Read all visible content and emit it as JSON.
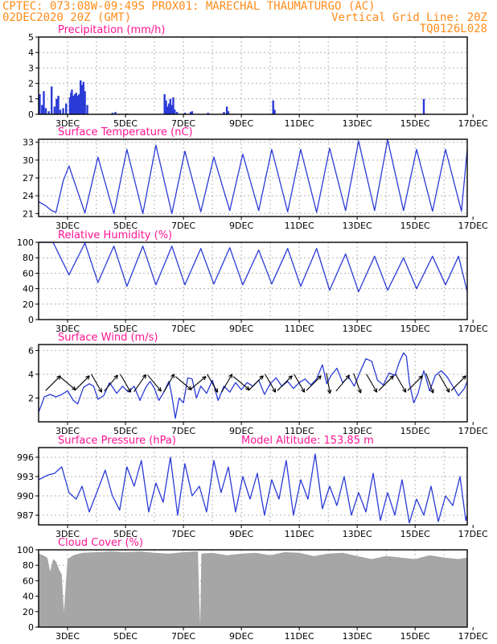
{
  "header": {
    "line1_left": "CPTEC:  073:08W-09:49S  PROX01: MARECHAL THAUMATURGO (AC)",
    "line2_left": "02DEC2020 20Z (GMT)",
    "line2_right": "Vertical Grid Line: 20Z",
    "line3_right": "TQ0126L028"
  },
  "colors": {
    "header": "#ff8c1a",
    "title": "#ff1493",
    "series": "#2b3bd6",
    "cloud": "#a6a6a6",
    "grid": "#b4b4b4",
    "wind_arrow": "#000000"
  },
  "chart_data": [
    {
      "type": "bar",
      "title": "Precipitation (mm/h)",
      "x_ticks": [
        "3DEC",
        "5DEC",
        "7DEC",
        "9DEC",
        "11DEC",
        "13DEC",
        "15DEC",
        "17DEC"
      ],
      "x_range": [
        0,
        14.8
      ],
      "ylim": [
        0,
        5
      ],
      "y_ticks": [
        0,
        1,
        2,
        3,
        4,
        5
      ],
      "grid": true,
      "points": [
        [
          0.04,
          1.3
        ],
        [
          0.12,
          0.6
        ],
        [
          0.18,
          1.5
        ],
        [
          0.25,
          0.4
        ],
        [
          0.35,
          0.2
        ],
        [
          0.45,
          1.8
        ],
        [
          0.55,
          0.5
        ],
        [
          0.62,
          1.0
        ],
        [
          0.68,
          1.2
        ],
        [
          0.75,
          0.3
        ],
        [
          0.85,
          0.4
        ],
        [
          0.95,
          0.7
        ],
        [
          1.08,
          1.1
        ],
        [
          1.12,
          1.4
        ],
        [
          1.15,
          1.6
        ],
        [
          1.2,
          1.2
        ],
        [
          1.25,
          1.3
        ],
        [
          1.3,
          1.4
        ],
        [
          1.35,
          1.2
        ],
        [
          1.4,
          1.3
        ],
        [
          1.45,
          2.2
        ],
        [
          1.5,
          1.9
        ],
        [
          1.55,
          2.1
        ],
        [
          1.6,
          1.5
        ],
        [
          1.68,
          0.6
        ],
        [
          2.55,
          0.1
        ],
        [
          2.65,
          0.15
        ],
        [
          3.05,
          0.05
        ],
        [
          4.35,
          1.3
        ],
        [
          4.4,
          0.9
        ],
        [
          4.45,
          0.5
        ],
        [
          4.5,
          0.7
        ],
        [
          4.55,
          1.0
        ],
        [
          4.6,
          0.6
        ],
        [
          4.65,
          1.1
        ],
        [
          4.7,
          0.3
        ],
        [
          4.78,
          0.15
        ],
        [
          5.05,
          0.1
        ],
        [
          5.25,
          0.15
        ],
        [
          5.3,
          0.2
        ],
        [
          5.85,
          0.1
        ],
        [
          6.4,
          0.15
        ],
        [
          6.5,
          0.5
        ],
        [
          6.55,
          0.2
        ],
        [
          8.1,
          0.9
        ],
        [
          8.15,
          0.3
        ],
        [
          13.3,
          1.0
        ]
      ]
    },
    {
      "type": "line",
      "title": "Surface Temperature (nC)",
      "x_ticks": [
        "3DEC",
        "5DEC",
        "7DEC",
        "9DEC",
        "11DEC",
        "13DEC",
        "15DEC",
        "17DEC"
      ],
      "x_range": [
        0,
        14.8
      ],
      "ylim": [
        20.5,
        33.5
      ],
      "y_ticks": [
        21,
        24,
        27,
        30,
        33
      ],
      "grid": true,
      "points": [
        [
          0,
          23.0
        ],
        [
          0.25,
          22.3
        ],
        [
          0.45,
          21.5
        ],
        [
          0.6,
          21.2
        ],
        [
          0.85,
          26.5
        ],
        [
          1.05,
          29.0
        ],
        [
          1.6,
          21.1
        ],
        [
          2.05,
          30.5
        ],
        [
          2.6,
          21.0
        ],
        [
          3.05,
          31.8
        ],
        [
          3.6,
          21.0
        ],
        [
          4.05,
          32.5
        ],
        [
          4.6,
          21.0
        ],
        [
          5.05,
          31.5
        ],
        [
          5.6,
          21.3
        ],
        [
          6.05,
          30.5
        ],
        [
          6.6,
          21.5
        ],
        [
          7.05,
          31.0
        ],
        [
          7.6,
          21.5
        ],
        [
          8.05,
          31.8
        ],
        [
          8.6,
          21.3
        ],
        [
          9.05,
          31.8
        ],
        [
          9.6,
          21.2
        ],
        [
          10.05,
          32.0
        ],
        [
          10.6,
          21.5
        ],
        [
          11.05,
          33.2
        ],
        [
          11.6,
          21.5
        ],
        [
          12.05,
          33.4
        ],
        [
          12.6,
          21.5
        ],
        [
          13.05,
          31.8
        ],
        [
          13.6,
          21.4
        ],
        [
          14.05,
          31.8
        ],
        [
          14.6,
          21.4
        ],
        [
          14.8,
          31.8
        ]
      ]
    },
    {
      "type": "line",
      "title": "Relative Humidity (%)",
      "x_ticks": [
        "3DEC",
        "5DEC",
        "7DEC",
        "9DEC",
        "11DEC",
        "13DEC",
        "15DEC",
        "17DEC"
      ],
      "x_range": [
        0,
        14.8
      ],
      "ylim": [
        0,
        100
      ],
      "y_ticks": [
        0,
        20,
        40,
        60,
        80,
        100
      ],
      "grid": true,
      "points": [
        [
          0,
          100
        ],
        [
          0.5,
          100
        ],
        [
          1.05,
          58
        ],
        [
          1.6,
          99
        ],
        [
          2.05,
          48
        ],
        [
          2.6,
          95
        ],
        [
          3.05,
          43
        ],
        [
          3.6,
          95
        ],
        [
          4.05,
          45
        ],
        [
          4.6,
          95
        ],
        [
          5.05,
          45
        ],
        [
          5.6,
          92
        ],
        [
          6.05,
          46
        ],
        [
          6.6,
          93
        ],
        [
          7.05,
          45
        ],
        [
          7.6,
          90
        ],
        [
          8.05,
          46
        ],
        [
          8.6,
          92
        ],
        [
          9.05,
          43
        ],
        [
          9.6,
          92
        ],
        [
          10.05,
          38
        ],
        [
          10.6,
          85
        ],
        [
          11.05,
          36
        ],
        [
          11.6,
          82
        ],
        [
          12.05,
          38
        ],
        [
          12.6,
          80
        ],
        [
          13.05,
          40
        ],
        [
          13.6,
          82
        ],
        [
          14.05,
          45
        ],
        [
          14.5,
          82
        ],
        [
          14.8,
          36
        ]
      ]
    },
    {
      "type": "line",
      "title": "Surface Wind (m/s)",
      "x_ticks": [
        "3DEC",
        "5DEC",
        "7DEC",
        "9DEC",
        "11DEC",
        "13DEC",
        "15DEC",
        "17DEC"
      ],
      "x_range": [
        0,
        14.8
      ],
      "ylim": [
        0,
        6.5
      ],
      "y_ticks": [
        2,
        4,
        6
      ],
      "grid": true,
      "points": [
        [
          0,
          0.8
        ],
        [
          0.2,
          2.1
        ],
        [
          0.4,
          2.3
        ],
        [
          0.6,
          2.1
        ],
        [
          0.8,
          2.3
        ],
        [
          1.0,
          2.6
        ],
        [
          1.2,
          1.8
        ],
        [
          1.35,
          1.5
        ],
        [
          1.55,
          2.9
        ],
        [
          1.75,
          3.2
        ],
        [
          1.9,
          3.0
        ],
        [
          2.05,
          1.9
        ],
        [
          2.25,
          2.2
        ],
        [
          2.45,
          3.3
        ],
        [
          2.7,
          2.4
        ],
        [
          2.9,
          3.0
        ],
        [
          3.1,
          2.5
        ],
        [
          3.3,
          3.0
        ],
        [
          3.5,
          1.8
        ],
        [
          3.7,
          2.9
        ],
        [
          3.85,
          3.4
        ],
        [
          4.0,
          2.8
        ],
        [
          4.15,
          1.8
        ],
        [
          4.3,
          2.4
        ],
        [
          4.5,
          3.4
        ],
        [
          4.6,
          2.2
        ],
        [
          4.72,
          0.3
        ],
        [
          4.85,
          2.0
        ],
        [
          5.0,
          1.6
        ],
        [
          5.15,
          3.7
        ],
        [
          5.3,
          3.6
        ],
        [
          5.45,
          2.0
        ],
        [
          5.6,
          3.0
        ],
        [
          5.8,
          2.4
        ],
        [
          6.0,
          3.5
        ],
        [
          6.2,
          1.8
        ],
        [
          6.4,
          3.0
        ],
        [
          6.6,
          2.5
        ],
        [
          6.8,
          3.3
        ],
        [
          7.0,
          2.7
        ],
        [
          7.2,
          3.3
        ],
        [
          7.4,
          3.0
        ],
        [
          7.6,
          3.5
        ],
        [
          7.8,
          2.3
        ],
        [
          8.0,
          3.2
        ],
        [
          8.2,
          3.7
        ],
        [
          8.4,
          3.0
        ],
        [
          8.6,
          3.4
        ],
        [
          8.8,
          2.8
        ],
        [
          9.0,
          3.3
        ],
        [
          9.2,
          3.6
        ],
        [
          9.4,
          3.1
        ],
        [
          9.6,
          3.6
        ],
        [
          9.8,
          4.8
        ],
        [
          9.95,
          3.2
        ],
        [
          10.1,
          3.9
        ],
        [
          10.3,
          4.5
        ],
        [
          10.5,
          3.3
        ],
        [
          10.7,
          3.8
        ],
        [
          10.9,
          3.0
        ],
        [
          11.1,
          4.2
        ],
        [
          11.3,
          5.3
        ],
        [
          11.5,
          5.1
        ],
        [
          11.7,
          3.5
        ],
        [
          11.9,
          3.1
        ],
        [
          12.1,
          4.1
        ],
        [
          12.3,
          3.9
        ],
        [
          12.45,
          5.0
        ],
        [
          12.6,
          5.8
        ],
        [
          12.7,
          5.5
        ],
        [
          12.8,
          3.3
        ],
        [
          12.95,
          1.6
        ],
        [
          13.1,
          2.4
        ],
        [
          13.3,
          4.3
        ],
        [
          13.5,
          2.6
        ],
        [
          13.7,
          3.9
        ],
        [
          13.9,
          4.3
        ],
        [
          14.1,
          3.8
        ],
        [
          14.3,
          3.0
        ],
        [
          14.5,
          2.2
        ],
        [
          14.7,
          2.8
        ],
        [
          14.8,
          3.4
        ]
      ],
      "arrow_days": [
        0.5,
        1.0,
        1.5,
        2.0,
        2.5,
        3.0,
        3.5,
        4.0,
        4.5,
        5.0,
        5.5,
        6.0,
        6.5,
        7.0,
        7.5,
        8.0,
        8.5,
        9.0,
        9.5,
        10.0,
        10.5,
        11.0,
        11.5,
        12.0,
        12.5,
        13.0,
        13.5,
        14.0,
        14.5
      ],
      "arrow_angles_deg": [
        45,
        320,
        45,
        300,
        50,
        300,
        55,
        310,
        60,
        320,
        40,
        300,
        60,
        320,
        45,
        300,
        45,
        300,
        45,
        280,
        50,
        290,
        300,
        45,
        300,
        45,
        290,
        300,
        45
      ]
    },
    {
      "type": "line",
      "title": "Surface Pressure (hPa)",
      "annotation": "Model Altitude: 153.85 m",
      "x_ticks": [
        "3DEC",
        "5DEC",
        "7DEC",
        "9DEC",
        "11DEC",
        "13DEC",
        "15DEC",
        "17DEC"
      ],
      "x_range": [
        0,
        14.8
      ],
      "ylim": [
        985.5,
        997.5
      ],
      "y_ticks": [
        987,
        990,
        993,
        996
      ],
      "grid": true,
      "points": [
        [
          0,
          992.5
        ],
        [
          0.3,
          993.2
        ],
        [
          0.55,
          993.5
        ],
        [
          0.8,
          994.5
        ],
        [
          1.05,
          990.5
        ],
        [
          1.3,
          989.5
        ],
        [
          1.5,
          991.5
        ],
        [
          1.75,
          987.5
        ],
        [
          2.05,
          991.0
        ],
        [
          2.3,
          994.0
        ],
        [
          2.55,
          990.0
        ],
        [
          2.8,
          987.8
        ],
        [
          3.05,
          994.5
        ],
        [
          3.3,
          991.5
        ],
        [
          3.55,
          995.5
        ],
        [
          3.8,
          987.5
        ],
        [
          4.05,
          992.0
        ],
        [
          4.3,
          989.0
        ],
        [
          4.55,
          996.0
        ],
        [
          4.8,
          987.0
        ],
        [
          5.05,
          995.0
        ],
        [
          5.3,
          990.0
        ],
        [
          5.55,
          991.5
        ],
        [
          5.8,
          987.5
        ],
        [
          6.05,
          995.5
        ],
        [
          6.3,
          990.5
        ],
        [
          6.55,
          994.5
        ],
        [
          6.8,
          987.5
        ],
        [
          7.05,
          993.0
        ],
        [
          7.3,
          989.5
        ],
        [
          7.55,
          993.5
        ],
        [
          7.8,
          987.0
        ],
        [
          8.05,
          992.5
        ],
        [
          8.3,
          989.5
        ],
        [
          8.55,
          995.5
        ],
        [
          8.8,
          987.0
        ],
        [
          9.05,
          992.5
        ],
        [
          9.3,
          989.5
        ],
        [
          9.55,
          996.5
        ],
        [
          9.8,
          988.0
        ],
        [
          10.05,
          991.5
        ],
        [
          10.3,
          988.5
        ],
        [
          10.55,
          993.0
        ],
        [
          10.8,
          987.0
        ],
        [
          11.05,
          990.5
        ],
        [
          11.3,
          987.5
        ],
        [
          11.55,
          993.5
        ],
        [
          11.8,
          986.2
        ],
        [
          12.05,
          990.5
        ],
        [
          12.3,
          987.0
        ],
        [
          12.55,
          992.5
        ],
        [
          12.8,
          985.8
        ],
        [
          13.05,
          989.5
        ],
        [
          13.3,
          987.0
        ],
        [
          13.55,
          991.5
        ],
        [
          13.8,
          986.0
        ],
        [
          14.05,
          990.0
        ],
        [
          14.3,
          988.5
        ],
        [
          14.55,
          993.0
        ],
        [
          14.75,
          986.2
        ],
        [
          14.8,
          987.0
        ]
      ]
    },
    {
      "type": "area",
      "title": "Cloud Cover (%)",
      "x_ticks": [
        "3DEC",
        "5DEC",
        "7DEC",
        "9DEC",
        "11DEC",
        "13DEC",
        "15DEC",
        "17DEC"
      ],
      "x_range": [
        0,
        14.8
      ],
      "ylim": [
        0,
        100
      ],
      "y_ticks": [
        0,
        20,
        40,
        60,
        80,
        100
      ],
      "grid": true,
      "points": [
        [
          0,
          95
        ],
        [
          0.15,
          93
        ],
        [
          0.3,
          90
        ],
        [
          0.4,
          72
        ],
        [
          0.5,
          88
        ],
        [
          0.6,
          85
        ],
        [
          0.7,
          75
        ],
        [
          0.8,
          68
        ],
        [
          0.85,
          35
        ],
        [
          0.88,
          20
        ],
        [
          0.92,
          45
        ],
        [
          1.0,
          88
        ],
        [
          1.2,
          93
        ],
        [
          1.5,
          96
        ],
        [
          2.0,
          97
        ],
        [
          2.5,
          98
        ],
        [
          3.0,
          97
        ],
        [
          3.5,
          98
        ],
        [
          4.0,
          96
        ],
        [
          4.5,
          95
        ],
        [
          5.0,
          97
        ],
        [
          5.5,
          98
        ],
        [
          5.55,
          30
        ],
        [
          5.58,
          3
        ],
        [
          5.62,
          95
        ],
        [
          6.0,
          96
        ],
        [
          6.5,
          93
        ],
        [
          7.0,
          95
        ],
        [
          7.5,
          96
        ],
        [
          8.0,
          93
        ],
        [
          8.5,
          97
        ],
        [
          9.0,
          96
        ],
        [
          9.5,
          92
        ],
        [
          10.0,
          95
        ],
        [
          10.5,
          96
        ],
        [
          11.0,
          92
        ],
        [
          11.5,
          88
        ],
        [
          12.0,
          92
        ],
        [
          12.5,
          90
        ],
        [
          13.0,
          88
        ],
        [
          13.5,
          93
        ],
        [
          14.0,
          90
        ],
        [
          14.5,
          88
        ],
        [
          14.8,
          90
        ]
      ]
    }
  ]
}
